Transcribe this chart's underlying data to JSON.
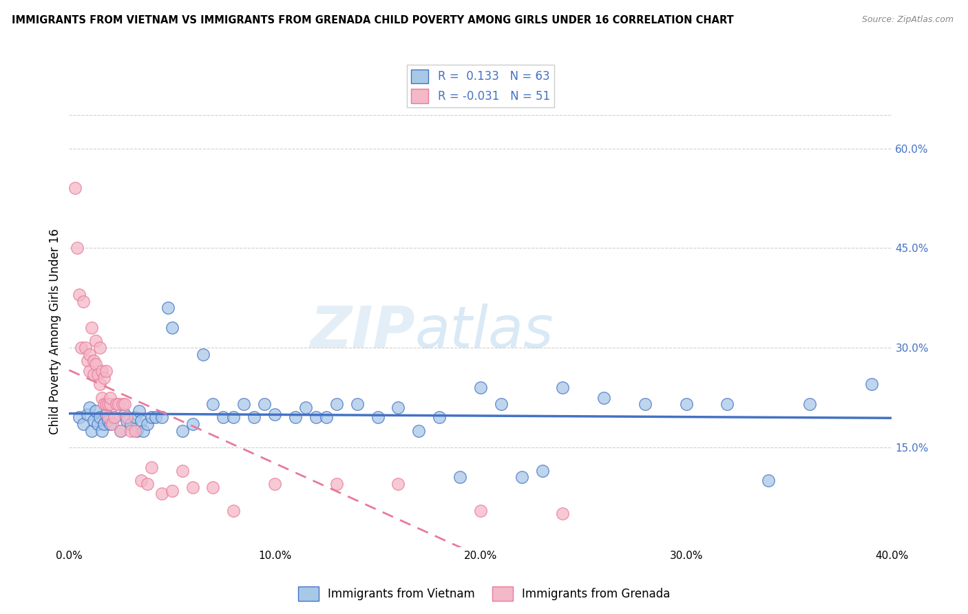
{
  "title": "IMMIGRANTS FROM VIETNAM VS IMMIGRANTS FROM GRENADA CHILD POVERTY AMONG GIRLS UNDER 16 CORRELATION CHART",
  "source": "Source: ZipAtlas.com",
  "ylabel": "Child Poverty Among Girls Under 16",
  "xlabel": "",
  "xlim": [
    0.0,
    0.4
  ],
  "ylim": [
    0.0,
    0.65
  ],
  "yticks": [
    0.15,
    0.3,
    0.45,
    0.6
  ],
  "ytick_labels": [
    "15.0%",
    "30.0%",
    "45.0%",
    "60.0%"
  ],
  "xticks": [
    0.0,
    0.1,
    0.2,
    0.3,
    0.4
  ],
  "xtick_labels": [
    "0.0%",
    "10.0%",
    "20.0%",
    "30.0%",
    "40.0%"
  ],
  "vietnam_color": "#a8c8e8",
  "grenada_color": "#f4b8c8",
  "vietnam_line_color": "#4472c4",
  "grenada_line_color": "#e87a9a",
  "R_vietnam": 0.133,
  "N_vietnam": 63,
  "R_grenada": -0.031,
  "N_grenada": 51,
  "watermark_zip": "ZIP",
  "watermark_atlas": "atlas",
  "background_color": "#ffffff",
  "grid_color": "#d0d0d0",
  "vietnam_scatter_x": [
    0.005,
    0.007,
    0.009,
    0.01,
    0.011,
    0.012,
    0.013,
    0.014,
    0.015,
    0.016,
    0.017,
    0.018,
    0.019,
    0.02,
    0.022,
    0.025,
    0.027,
    0.028,
    0.03,
    0.032,
    0.033,
    0.034,
    0.035,
    0.036,
    0.038,
    0.04,
    0.042,
    0.045,
    0.048,
    0.05,
    0.055,
    0.06,
    0.065,
    0.07,
    0.075,
    0.08,
    0.085,
    0.09,
    0.095,
    0.1,
    0.11,
    0.115,
    0.12,
    0.125,
    0.13,
    0.14,
    0.15,
    0.16,
    0.17,
    0.18,
    0.19,
    0.2,
    0.21,
    0.22,
    0.23,
    0.24,
    0.26,
    0.28,
    0.3,
    0.32,
    0.34,
    0.36,
    0.39
  ],
  "vietnam_scatter_y": [
    0.195,
    0.185,
    0.2,
    0.21,
    0.175,
    0.19,
    0.205,
    0.185,
    0.195,
    0.175,
    0.185,
    0.2,
    0.19,
    0.185,
    0.195,
    0.175,
    0.2,
    0.19,
    0.185,
    0.195,
    0.175,
    0.205,
    0.19,
    0.175,
    0.185,
    0.195,
    0.195,
    0.195,
    0.36,
    0.33,
    0.175,
    0.185,
    0.29,
    0.215,
    0.195,
    0.195,
    0.215,
    0.195,
    0.215,
    0.2,
    0.195,
    0.21,
    0.195,
    0.195,
    0.215,
    0.215,
    0.195,
    0.21,
    0.175,
    0.195,
    0.105,
    0.24,
    0.215,
    0.105,
    0.115,
    0.24,
    0.225,
    0.215,
    0.215,
    0.215,
    0.1,
    0.215,
    0.245
  ],
  "grenada_scatter_x": [
    0.003,
    0.004,
    0.005,
    0.006,
    0.007,
    0.008,
    0.009,
    0.01,
    0.01,
    0.011,
    0.012,
    0.012,
    0.013,
    0.013,
    0.014,
    0.015,
    0.015,
    0.016,
    0.016,
    0.017,
    0.017,
    0.018,
    0.018,
    0.019,
    0.019,
    0.02,
    0.02,
    0.021,
    0.022,
    0.023,
    0.024,
    0.025,
    0.026,
    0.027,
    0.028,
    0.03,
    0.032,
    0.035,
    0.038,
    0.04,
    0.045,
    0.05,
    0.055,
    0.06,
    0.07,
    0.08,
    0.1,
    0.13,
    0.16,
    0.2,
    0.24
  ],
  "grenada_scatter_y": [
    0.54,
    0.45,
    0.38,
    0.3,
    0.37,
    0.3,
    0.28,
    0.29,
    0.265,
    0.33,
    0.28,
    0.26,
    0.31,
    0.275,
    0.26,
    0.3,
    0.245,
    0.265,
    0.225,
    0.255,
    0.215,
    0.215,
    0.265,
    0.215,
    0.195,
    0.215,
    0.225,
    0.185,
    0.195,
    0.215,
    0.215,
    0.175,
    0.215,
    0.215,
    0.195,
    0.175,
    0.175,
    0.1,
    0.095,
    0.12,
    0.08,
    0.085,
    0.115,
    0.09,
    0.09,
    0.055,
    0.095,
    0.095,
    0.095,
    0.055,
    0.05
  ]
}
